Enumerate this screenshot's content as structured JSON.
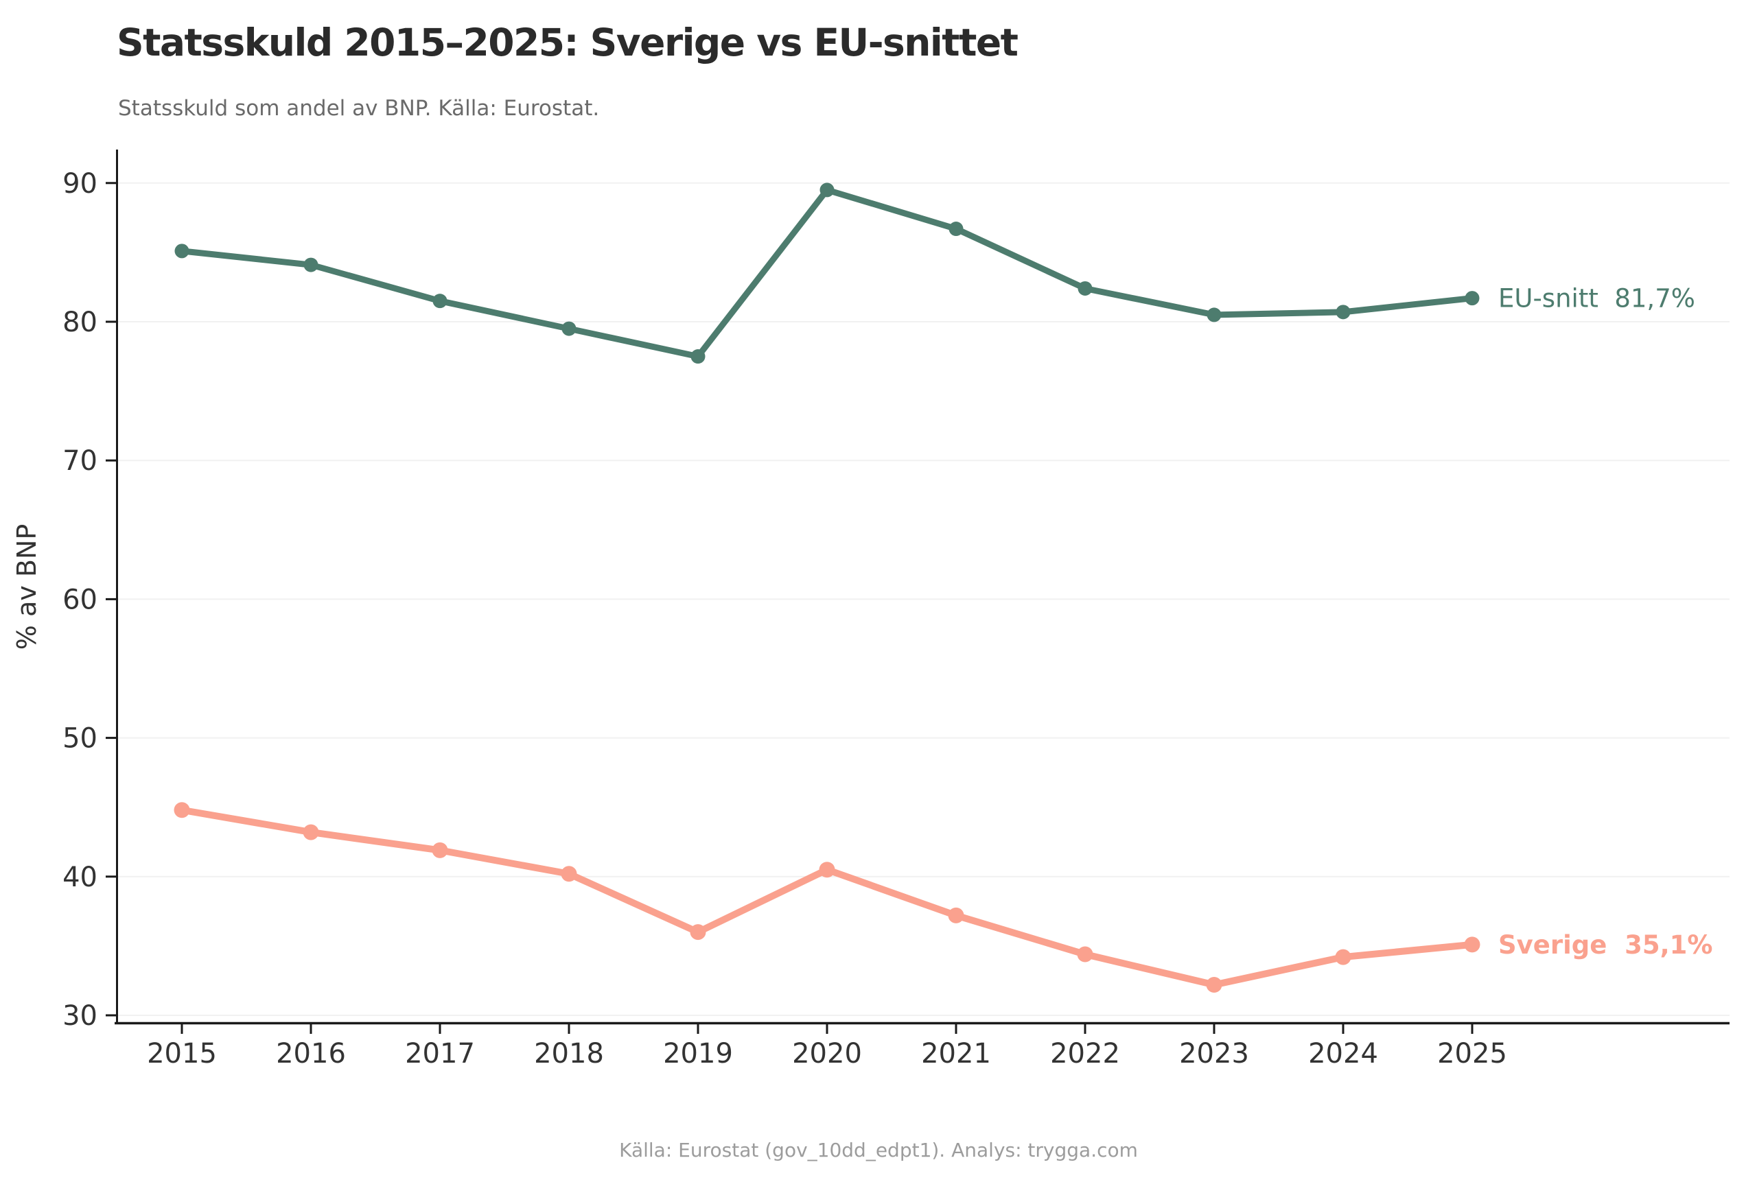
{
  "title": "Statsskuld 2015–2025: Sverige vs EU-snittet",
  "subtitle": "Statsskuld som andel av BNP. Källa: Eurostat.",
  "footer": "Källa: Eurostat (gov_10dd_edpt1). Analys: trygga.com",
  "colors": {
    "eu_snitt": "#4D7C6E",
    "sverige": "#FAA18E",
    "grid": "#F1F1F1",
    "axis": "#1A1A1A",
    "tick_label": "#333333",
    "title": "#2B2B2B",
    "subtitle": "#6A6A6A",
    "footer": "#9C9C9C",
    "background": "#FFFFFF"
  },
  "chart_data": {
    "type": "line",
    "title": "Statsskuld 2015–2025: Sverige vs EU-snittet",
    "subtitle": "Statsskuld som andel av BNP. Källa: Eurostat.",
    "xlabel": "",
    "ylabel": "% av BNP",
    "x": [
      2015,
      2016,
      2017,
      2018,
      2019,
      2020,
      2021,
      2022,
      2023,
      2024,
      2025
    ],
    "yticks": [
      30,
      40,
      50,
      60,
      70,
      80,
      90
    ],
    "ylim": [
      28,
      92.5
    ],
    "grid": "horizontal",
    "legend_position": "line-end-labels",
    "series": [
      {
        "name": "EU-snitt",
        "color": "#4D7C6E",
        "values": [
          85.1,
          84.1,
          81.5,
          79.5,
          77.5,
          89.5,
          86.7,
          82.4,
          80.5,
          80.7,
          81.7
        ],
        "end_label": "EU-snitt  81,7%",
        "end_value": "81,7%",
        "bold_label": false
      },
      {
        "name": "Sverige",
        "color": "#FAA18E",
        "values": [
          44.8,
          43.2,
          41.9,
          40.2,
          36.0,
          40.5,
          37.2,
          34.4,
          32.2,
          34.2,
          35.1
        ],
        "end_label": "Sverige  35,1%",
        "end_value": "35,1%",
        "bold_label": true
      }
    ]
  }
}
